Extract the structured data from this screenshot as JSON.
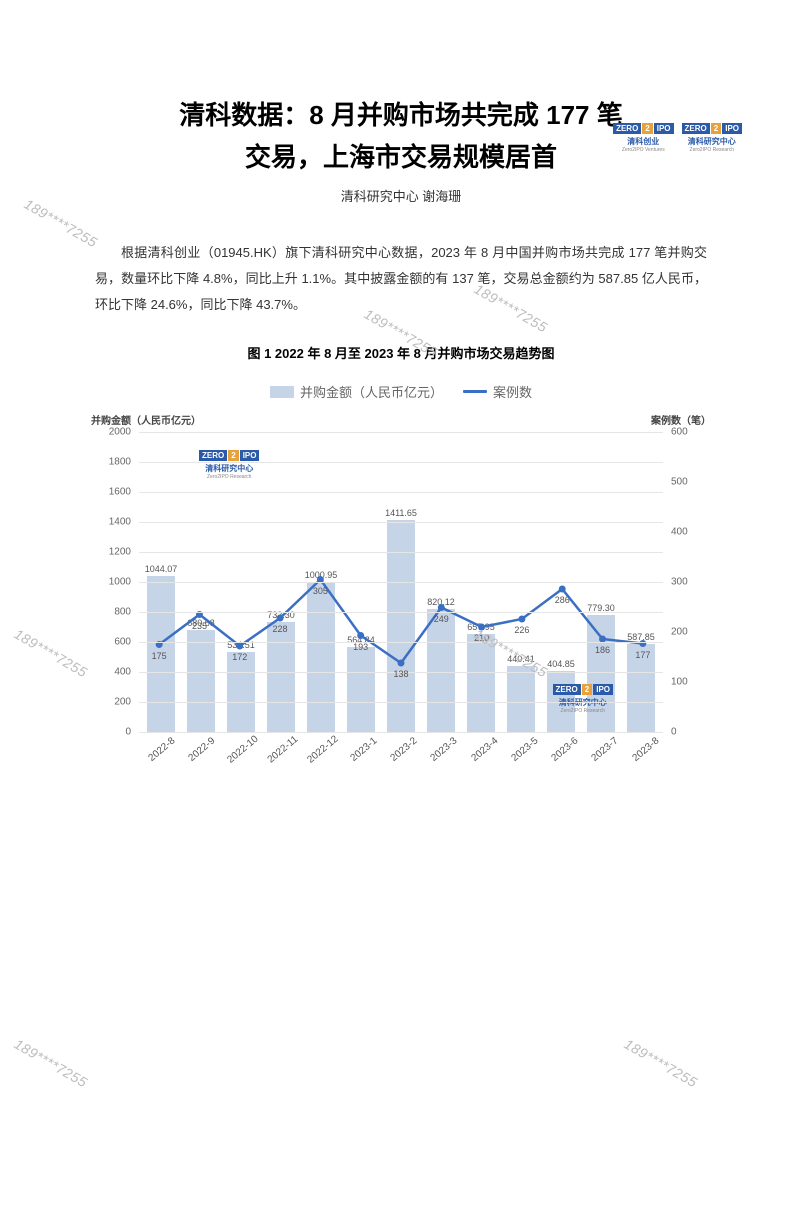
{
  "header": {
    "logo1_cn": "清科创业",
    "logo1_en": "Zero2IPO Ventures",
    "logo2_cn": "清科研究中心",
    "logo2_en": "Zero2IPO Research",
    "badge_left": "ZERO",
    "badge_mid": "2",
    "badge_right": "IPO"
  },
  "title_line1": "清科数据：8 月并购市场共完成 177 笔",
  "title_line2": "交易，上海市交易规模居首",
  "author": "清科研究中心 谢海珊",
  "body": "根据清科创业（01945.HK）旗下清科研究中心数据，2023 年 8 月中国并购市场共完成 177 笔并购交易，数量环比下降 4.8%，同比上升 1.1%。其中披露金额的有 137 笔，交易总金额约为 587.85 亿人民币，环比下降 24.6%，同比下降 43.7%。",
  "chart": {
    "title": "图 1 2022 年 8 月至 2023 年 8 月并购市场交易趋势图",
    "legend_bar": "并购金额（人民币亿元）",
    "legend_line": "案例数",
    "y_left_label": "并购金额（人民币亿元）",
    "y_right_label": "案例数（笔）",
    "y_left_max": 2000,
    "y_left_step": 200,
    "y_right_max": 600,
    "y_right_step": 100,
    "bar_color": "#c6d4e8",
    "line_color": "#3b6fc4",
    "grid_color": "#e6e6e6",
    "categories": [
      "2022-8",
      "2022-9",
      "2022-10",
      "2022-11",
      "2022-12",
      "2023-1",
      "2023-2",
      "2023-3",
      "2023-4",
      "2023-5",
      "2023-6",
      "2023-7",
      "2023-8"
    ],
    "bar_values": [
      1044.07,
      680.68,
      534.51,
      732.3,
      1000.95,
      564.84,
      1411.65,
      820.12,
      657.95,
      440.41,
      404.85,
      779.3,
      587.85
    ],
    "line_values": [
      175,
      235,
      172,
      228,
      305,
      193,
      138,
      249,
      210,
      226,
      286,
      186,
      177
    ],
    "watermark_cn": "清科研究中心",
    "watermark_en": "Zero2IPO Research"
  },
  "watermark_text": "189****7255"
}
